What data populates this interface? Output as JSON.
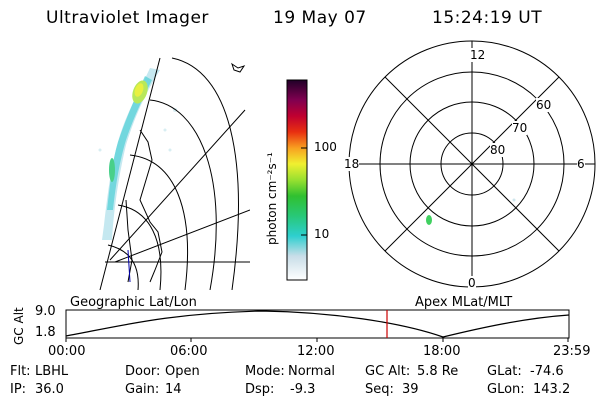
{
  "header": {
    "title": "Ultraviolet Imager",
    "date": "19 May 07",
    "time": "15:24:19 UT"
  },
  "colorbar": {
    "label": "photon cm⁻²s⁻¹",
    "ticks": [
      "100",
      "10"
    ]
  },
  "polar": {
    "mlt_labels": {
      "top": "12",
      "left": "18",
      "right": "6",
      "bottom": "0"
    },
    "lat_labels": [
      "60",
      "70",
      "80"
    ]
  },
  "altitude_panel": {
    "left_title": "Geographic Lat/Lon",
    "right_title": "Apex MLat/MLT",
    "y_label": "GC Alt",
    "y_ticks": [
      "9.0",
      "1.8"
    ],
    "x_ticks": [
      "00:00",
      "06:00",
      "12:00",
      "18:00",
      "23:59"
    ],
    "marker_time_hours": 15.4
  },
  "footer": {
    "row1": [
      {
        "label": "Flt:",
        "value": "LBHL"
      },
      {
        "label": "Door:",
        "value": "Open"
      },
      {
        "label": "Mode:",
        "value": "Normal"
      },
      {
        "label": "GC Alt:",
        "value": "5.8 Re"
      },
      {
        "label": "GLat:",
        "value": "-74.6"
      }
    ],
    "row2": [
      {
        "label": "IP:",
        "value": "36.0"
      },
      {
        "label": "Gain:",
        "value": "14"
      },
      {
        "label": "Dsp:",
        "value": "-9.3"
      },
      {
        "label": "Seq:",
        "value": "39"
      },
      {
        "label": "GLon:",
        "value": "143.2"
      }
    ]
  }
}
